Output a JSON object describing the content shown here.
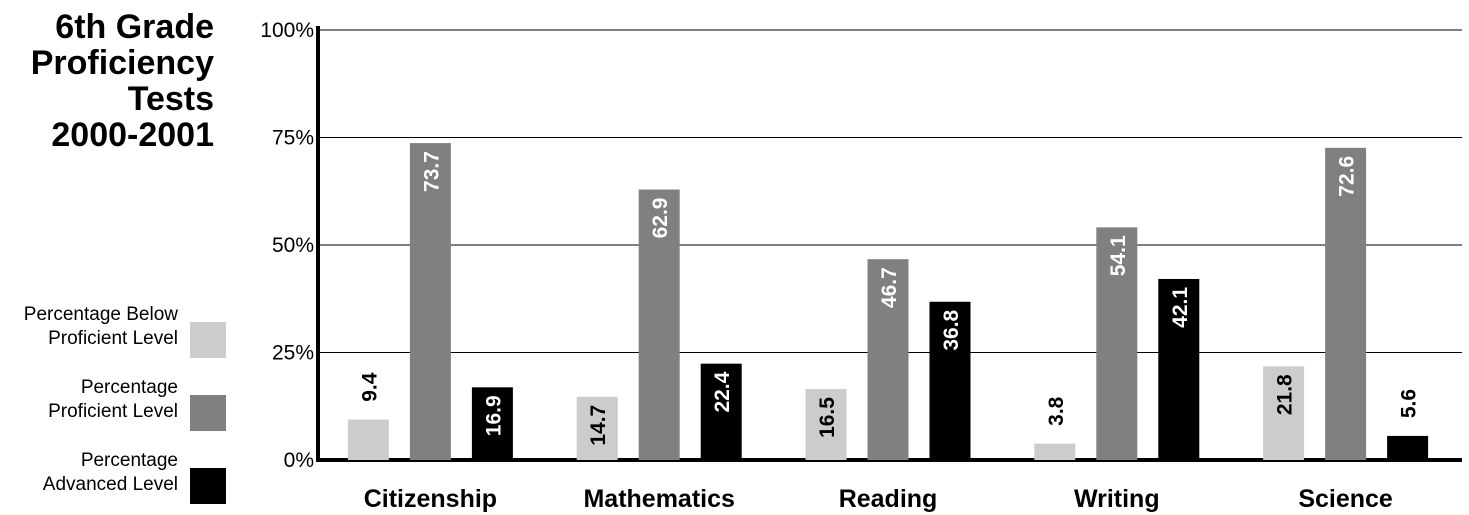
{
  "chart_data": {
    "type": "bar",
    "title_lines": [
      "6th Grade",
      "Proficiency",
      "Tests",
      "2000-2001"
    ],
    "categories": [
      "Citizenship",
      "Mathematics",
      "Reading",
      "Writing",
      "Science"
    ],
    "series": [
      {
        "name": "Percentage Below Proficient Level",
        "legend_lines": [
          "Percentage Below",
          "Proficient Level"
        ],
        "color": "#cccccc",
        "values": [
          9.4,
          14.7,
          16.5,
          3.8,
          21.8
        ]
      },
      {
        "name": "Percentage Proficient Level",
        "legend_lines": [
          "Percentage",
          "Proficient Level"
        ],
        "color": "#808080",
        "values": [
          73.7,
          62.9,
          46.7,
          54.1,
          72.6
        ]
      },
      {
        "name": "Percentage Advanced Level",
        "legend_lines": [
          "Percentage",
          "Advanced Level"
        ],
        "color": "#000000",
        "values": [
          16.9,
          22.4,
          36.8,
          42.1,
          5.6
        ]
      }
    ],
    "y_ticks": [
      "0%",
      "25%",
      "50%",
      "75%",
      "100%"
    ],
    "ylim": [
      0,
      100
    ],
    "grid": true,
    "legend_position": "left",
    "xlabel": "",
    "ylabel": ""
  }
}
